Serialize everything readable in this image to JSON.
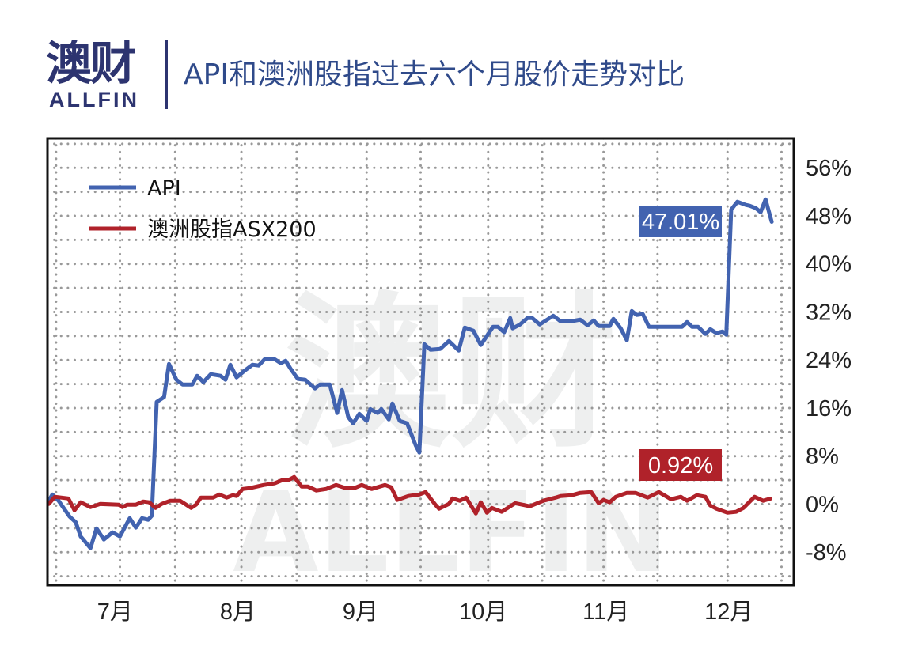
{
  "header": {
    "logo_cn": "澳财",
    "logo_en": "ALLFIN",
    "title": "API和澳洲股指过去六个月股价走势对比"
  },
  "watermark": {
    "cn": "澳财",
    "en": "ALLFIN"
  },
  "chart_data": {
    "type": "line",
    "title": "API和澳洲股指过去六个月股价走势对比",
    "xlabel": "",
    "ylabel": "",
    "x_unit": "month",
    "xlim": [
      6.45,
      12.53
    ],
    "ylim": [
      -13.5,
      60.9
    ],
    "x_ticks": [
      7,
      8,
      9,
      10,
      11,
      12
    ],
    "x_tick_labels": [
      "7月",
      "8月",
      "9月",
      "10月",
      "11月",
      "12月"
    ],
    "y_ticks": [
      56,
      48,
      40,
      32,
      24,
      16,
      8,
      0,
      -8
    ],
    "y_tick_labels": [
      "56%",
      "48%",
      "40%",
      "32%",
      "24%",
      "16%",
      "8%",
      "0%",
      "-8%"
    ],
    "y_axis_side": "right",
    "grid": true,
    "grid_style": "dotted",
    "legend_position": "top-left",
    "series": [
      {
        "name": "API",
        "color": "#4263b0",
        "end_label": "47.01%",
        "x": [
          6.46,
          6.49,
          6.54,
          6.63,
          6.68,
          6.72,
          6.8,
          6.85,
          6.91,
          6.98,
          7.04,
          7.12,
          7.17,
          7.22,
          7.27,
          7.3,
          7.34,
          7.4,
          7.44,
          7.5,
          7.55,
          7.63,
          7.67,
          7.72,
          7.78,
          7.86,
          7.9,
          7.94,
          7.99,
          8.06,
          8.12,
          8.17,
          8.22,
          8.3,
          8.35,
          8.39,
          8.43,
          8.49,
          8.55,
          8.63,
          8.67,
          8.75,
          8.81,
          8.85,
          8.9,
          8.94,
          8.99,
          9.05,
          9.08,
          9.14,
          9.17,
          9.23,
          9.26,
          9.32,
          9.38,
          9.45,
          9.48,
          9.52,
          9.57,
          9.65,
          9.72,
          9.8,
          9.85,
          9.92,
          9.98,
          10.08,
          10.12,
          10.17,
          10.22,
          10.24,
          10.3,
          10.36,
          10.4,
          10.46,
          10.57,
          10.63,
          10.72,
          10.79,
          10.85,
          10.9,
          10.94,
          11.03,
          11.06,
          11.12,
          11.17,
          11.21,
          11.25,
          11.3,
          11.35,
          11.62,
          11.66,
          11.7,
          11.75,
          11.81,
          11.85,
          11.9,
          11.95,
          11.98,
          12.02,
          12.07,
          12.14,
          12.17,
          12.22,
          12.26,
          12.3,
          12.35
        ],
        "values": [
          0.56,
          1.61,
          0.56,
          -2.07,
          -3.0,
          -5.37,
          -7.34,
          -4.05,
          -5.89,
          -4.71,
          -5.37,
          -2.34,
          -3.92,
          -2.34,
          -2.6,
          -1.94,
          17.02,
          17.81,
          23.34,
          20.71,
          19.92,
          19.92,
          21.37,
          20.31,
          21.63,
          21.37,
          20.71,
          23.21,
          21.1,
          22.29,
          23.21,
          23.08,
          24.13,
          24.13,
          23.47,
          23.87,
          22.55,
          20.84,
          20.71,
          19.26,
          19.92,
          19.92,
          15.18,
          18.99,
          14.52,
          13.46,
          15.04,
          13.86,
          15.83,
          15.18,
          15.83,
          14.12,
          16.76,
          13.86,
          13.46,
          9.78,
          8.59,
          26.63,
          25.71,
          25.84,
          27.16,
          25.58,
          29.4,
          28.87,
          26.5,
          29.53,
          29.53,
          28.61,
          30.98,
          29.27,
          29.92,
          30.98,
          30.98,
          29.92,
          31.37,
          30.45,
          30.45,
          30.72,
          29.79,
          30.58,
          29.66,
          29.66,
          30.85,
          29.27,
          27.29,
          32.16,
          31.5,
          31.64,
          29.53,
          29.53,
          30.32,
          29.53,
          29.53,
          28.34,
          29.13,
          28.48,
          28.74,
          28.21,
          49.02,
          50.34,
          49.81,
          49.68,
          49.28,
          48.62,
          50.73,
          47.01
        ]
      },
      {
        "name": "澳洲股指ASX200",
        "color": "#b0222a",
        "end_label": "0.92%",
        "x": [
          6.46,
          6.51,
          6.62,
          6.67,
          6.72,
          6.8,
          6.88,
          7.03,
          7.06,
          7.1,
          7.17,
          7.23,
          7.28,
          7.33,
          7.38,
          7.45,
          7.53,
          7.62,
          7.66,
          7.7,
          7.8,
          7.85,
          7.91,
          7.96,
          7.99,
          8.04,
          8.1,
          8.21,
          8.3,
          8.36,
          8.41,
          8.46,
          8.52,
          8.57,
          8.64,
          8.72,
          8.8,
          8.88,
          8.95,
          9.01,
          9.09,
          9.2,
          9.25,
          9.3,
          9.39,
          9.48,
          9.53,
          9.61,
          9.64,
          9.72,
          9.75,
          9.81,
          9.86,
          9.94,
          9.98,
          10.03,
          10.07,
          10.15,
          10.26,
          10.38,
          10.49,
          10.59,
          10.63,
          10.72,
          10.79,
          10.88,
          10.94,
          10.98,
          11.03,
          11.08,
          11.17,
          11.24,
          11.34,
          11.43,
          11.53,
          11.61,
          11.66,
          11.74,
          11.81,
          11.85,
          11.9,
          11.99,
          12.06,
          12.12,
          12.21,
          12.28,
          12.34
        ],
        "values": [
          0.03,
          1.22,
          0.95,
          -1.02,
          0.3,
          -0.49,
          0.03,
          -0.1,
          -0.49,
          -0.1,
          -0.1,
          0.43,
          0.3,
          -0.63,
          0.03,
          0.56,
          0.56,
          -0.63,
          -0.1,
          1.09,
          1.09,
          1.61,
          1.09,
          1.48,
          1.35,
          2.53,
          2.67,
          3.19,
          3.46,
          3.98,
          3.98,
          4.51,
          2.93,
          2.93,
          2.27,
          2.53,
          3.19,
          2.67,
          2.67,
          3.19,
          2.53,
          3.19,
          2.8,
          0.69,
          1.35,
          1.61,
          2.01,
          -0.1,
          -0.76,
          0.03,
          0.95,
          0.56,
          1.09,
          -1.55,
          0.3,
          -1.42,
          -0.63,
          -1.28,
          0.16,
          -0.36,
          0.56,
          1.09,
          1.35,
          1.48,
          1.88,
          2.01,
          0.16,
          0.69,
          0.3,
          1.22,
          1.88,
          1.88,
          1.09,
          2.01,
          0.82,
          1.22,
          0.56,
          1.48,
          1.22,
          -0.23,
          -0.76,
          -1.42,
          -1.28,
          -0.63,
          1.22,
          0.56,
          0.92
        ]
      }
    ]
  }
}
